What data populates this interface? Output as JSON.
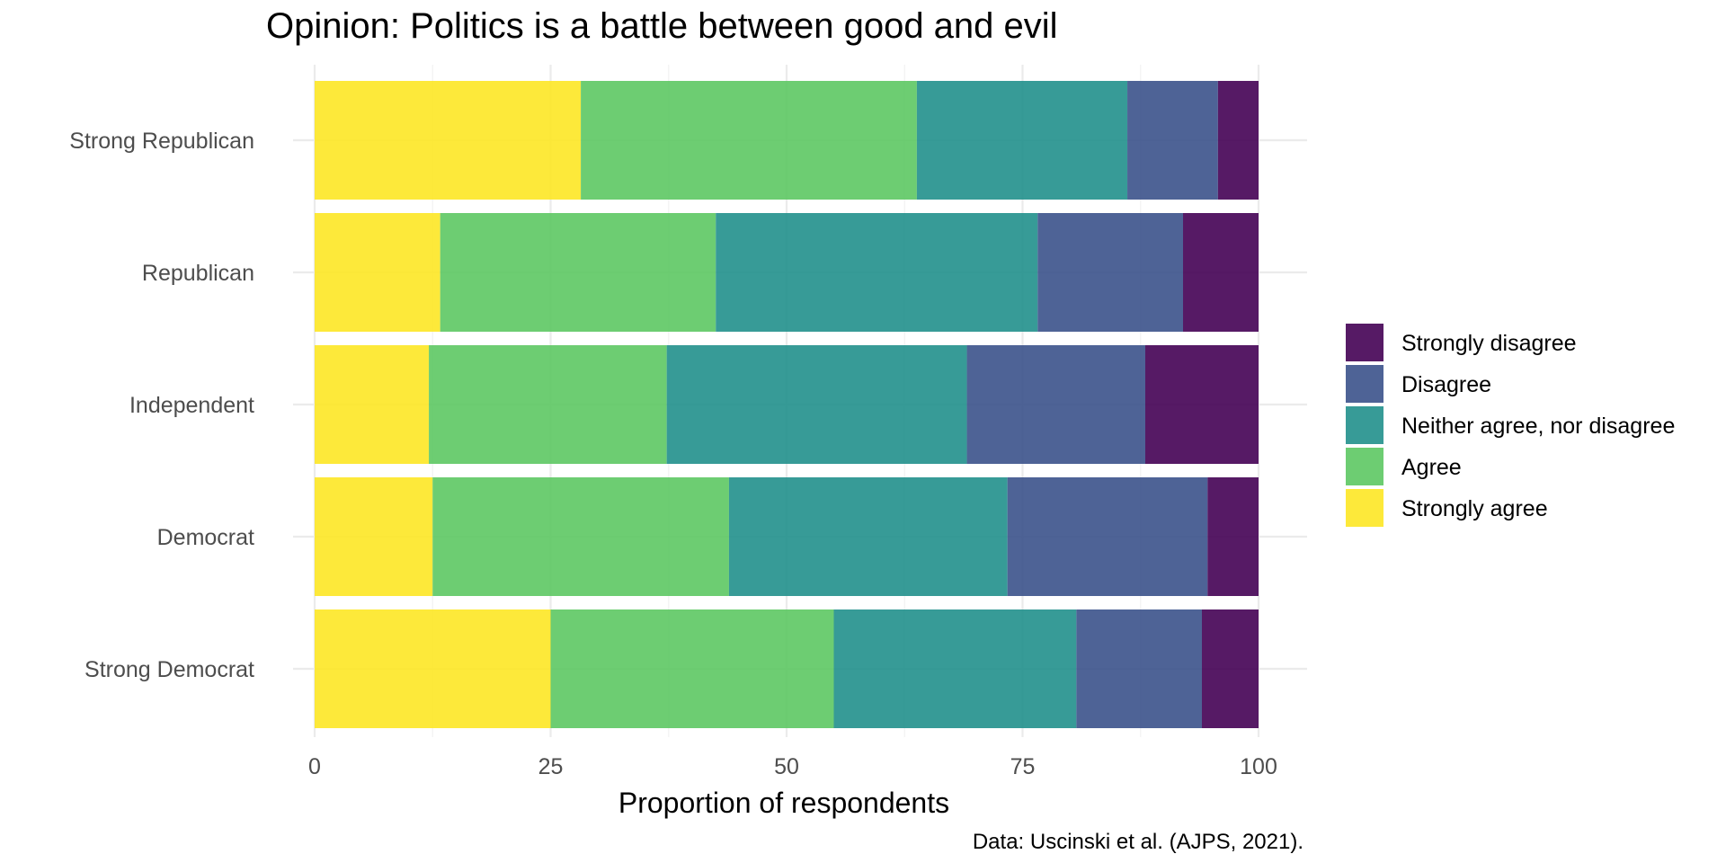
{
  "chart_data": {
    "type": "bar",
    "orientation": "horizontal",
    "stacked": true,
    "title": "Opinion: Politics is a battle between good and evil",
    "xlabel": "Proportion of respondents",
    "ylabel": "",
    "caption": "Data: Uscinski et al. (AJPS, 2021).",
    "xlim": [
      0,
      100
    ],
    "x_ticks": [
      0,
      25,
      50,
      75,
      100
    ],
    "grid": true,
    "legend_position": "right",
    "categories": [
      "Strong Republican",
      "Republican",
      "Independent",
      "Democrat",
      "Strong Democrat"
    ],
    "series": [
      {
        "name": "Strongly agree",
        "color": "#FDE725",
        "values": [
          28.2,
          13.3,
          12.1,
          12.5,
          25.0
        ]
      },
      {
        "name": "Agree",
        "color": "#5DC863",
        "values": [
          35.6,
          29.2,
          25.2,
          31.4,
          30.0
        ]
      },
      {
        "name": "Neither agree, nor disagree",
        "color": "#21908C",
        "values": [
          22.3,
          34.1,
          31.8,
          29.5,
          25.7
        ]
      },
      {
        "name": "Disagree",
        "color": "#3B528B",
        "values": [
          9.6,
          15.4,
          18.9,
          21.2,
          13.3
        ]
      },
      {
        "name": "Strongly disagree",
        "color": "#440154",
        "values": [
          4.3,
          8.0,
          12.0,
          5.4,
          6.0
        ]
      }
    ],
    "legend_order": [
      "Strongly disagree",
      "Disagree",
      "Neither agree, nor disagree",
      "Agree",
      "Strongly agree"
    ]
  }
}
